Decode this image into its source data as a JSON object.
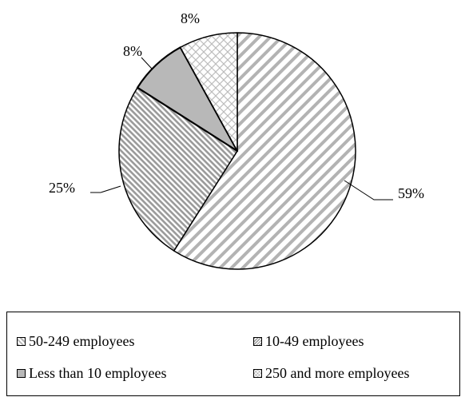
{
  "chart_data": {
    "type": "pie",
    "title": "",
    "start_angle_deg": 0,
    "direction": "clockwise",
    "legend_position": "bottom",
    "slices": [
      {
        "label": "50-249 employees",
        "value": 59,
        "value_label": "59%",
        "fill": "diag-light"
      },
      {
        "label": "10-49 employees",
        "value": 25,
        "value_label": "25%",
        "fill": "diag-dense"
      },
      {
        "label": "Less than 10 employees",
        "value": 8,
        "value_label": "8%",
        "fill": "solid-gray"
      },
      {
        "label": "250 and more employees",
        "value": 8,
        "value_label": "8%",
        "fill": "crosshatch"
      }
    ]
  },
  "colors": {
    "outline": "#000000",
    "hatch": "#b3b3b3",
    "solid_gray": "#b8b8b8",
    "background": "#ffffff"
  }
}
